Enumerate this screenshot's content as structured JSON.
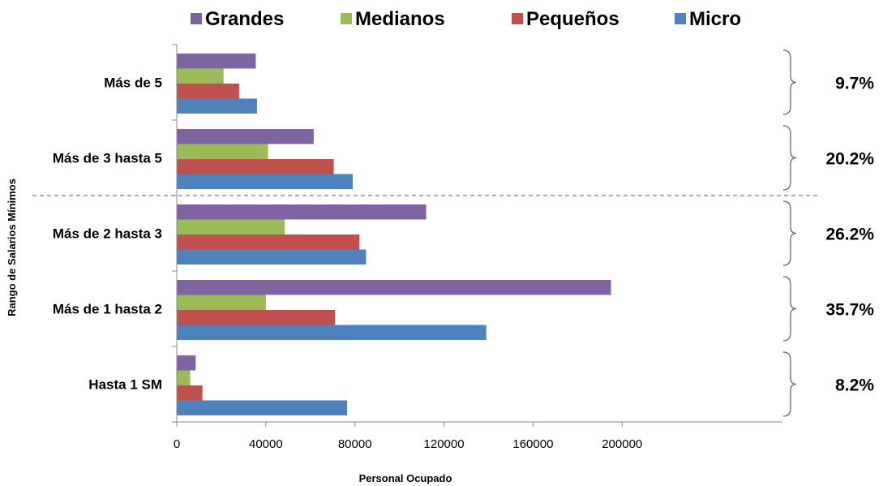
{
  "chart_data": {
    "type": "bar",
    "orientation": "horizontal",
    "categories": [
      "Hasta 1 SM",
      "Más de 1 hasta 2",
      "Más de 2 hasta 3",
      "Más de 3 hasta 5",
      "Más de 5"
    ],
    "series": [
      {
        "name": "Grandes",
        "color": "#8064a2",
        "values": [
          8500,
          195000,
          112000,
          61500,
          35500
        ]
      },
      {
        "name": "Medianos",
        "color": "#9bbb59",
        "values": [
          6000,
          40000,
          48500,
          41000,
          21000
        ]
      },
      {
        "name": "Pequeños",
        "color": "#c0504d",
        "values": [
          11500,
          71000,
          82000,
          70500,
          28000
        ]
      },
      {
        "name": "Micro",
        "color": "#4f81bd",
        "values": [
          76500,
          139000,
          85000,
          79000,
          36000
        ]
      }
    ],
    "percentages": [
      "8.2%",
      "35.7%",
      "26.2%",
      "20.2%",
      "9.7%"
    ],
    "xlabel": "Personal Ocupado",
    "ylabel": "Rango de Salarios Mínimos",
    "xlim": [
      0,
      200000
    ],
    "xticks": [
      0,
      40000,
      80000,
      120000,
      160000,
      200000
    ],
    "xtick_labels": [
      "0",
      "40000",
      "80000",
      "120000",
      "160000",
      "200000"
    ],
    "legend_position": "top",
    "legend_order": [
      "Grandes",
      "Medianos",
      "Pequeños",
      "Micro"
    ],
    "grid": false
  }
}
